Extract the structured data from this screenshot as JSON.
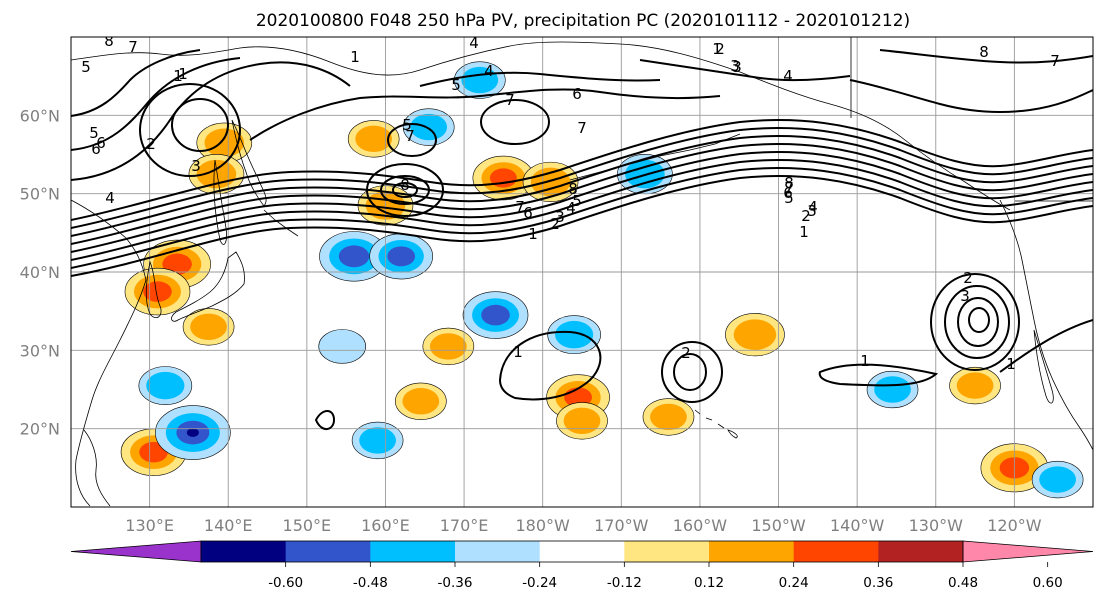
{
  "title": "2020100800 F048 250 hPa PV, precipitation PC (2020101112 - 2020101212)",
  "map": {
    "lat_labels": [
      "60°N",
      "50°N",
      "40°N",
      "30°N",
      "20°N"
    ],
    "lon_labels": [
      "130°E",
      "140°E",
      "150°E",
      "160°E",
      "170°E",
      "180°W",
      "170°W",
      "160°W",
      "150°W",
      "140°W",
      "130°W",
      "120°W"
    ],
    "grid": true
  },
  "colorbar": {
    "colors": [
      "#9933cc",
      "#000080",
      "#3355cc",
      "#00bfff",
      "#b0e0ff",
      "#ffffff",
      "#ffe680",
      "#ffa500",
      "#ff4500",
      "#b22222",
      "#ff88aa"
    ],
    "tick_labels": [
      "-0.60",
      "-0.48",
      "-0.36",
      "-0.24",
      "-0.12",
      "0.12",
      "0.24",
      "0.36",
      "0.48",
      "0.60"
    ]
  },
  "contour_labels": [
    "8",
    "7",
    "5",
    "6",
    "1",
    "2",
    "3",
    "4",
    "8",
    "7",
    "3",
    "4",
    "5",
    "7",
    "6",
    "7",
    "1",
    "2",
    "3",
    "4",
    "5",
    "6",
    "7",
    "8",
    "1",
    "2",
    "3",
    "4",
    "5",
    "6",
    "7",
    "8",
    "4",
    "3",
    "2",
    "1",
    "1",
    "2",
    "1",
    "1",
    "2",
    "3",
    "1",
    "8",
    "7",
    "1",
    "4",
    "5",
    "6",
    "5"
  ],
  "precip_blobs": [
    {
      "lon": 139.5,
      "lat": 56.5,
      "level": 0.3
    },
    {
      "lon": 138.5,
      "lat": 52.5,
      "level": 0.3
    },
    {
      "lon": 133.5,
      "lat": 41.0,
      "level": 0.42
    },
    {
      "lon": 131.0,
      "lat": 37.5,
      "level": 0.4
    },
    {
      "lon": 137.5,
      "lat": 33.0,
      "level": 0.26
    },
    {
      "lon": 130.5,
      "lat": 17.0,
      "level": 0.4
    },
    {
      "lon": 135.5,
      "lat": 19.5,
      "level": -0.5
    },
    {
      "lon": 132.0,
      "lat": 25.5,
      "level": -0.28
    },
    {
      "lon": 156.0,
      "lat": 42.0,
      "level": -0.44
    },
    {
      "lon": 162.0,
      "lat": 42.0,
      "level": -0.38
    },
    {
      "lon": 160.0,
      "lat": 48.5,
      "level": 0.3
    },
    {
      "lon": 175.0,
      "lat": 52.0,
      "level": 0.36
    },
    {
      "lon": 181.0,
      "lat": 51.5,
      "level": 0.3
    },
    {
      "lon": 174.0,
      "lat": 34.5,
      "level": -0.4
    },
    {
      "lon": 184.0,
      "lat": 32.0,
      "level": -0.28
    },
    {
      "lon": 184.5,
      "lat": 24.0,
      "level": 0.38
    },
    {
      "lon": 168.0,
      "lat": 30.5,
      "level": 0.26
    },
    {
      "lon": 164.5,
      "lat": 23.5,
      "level": 0.26
    },
    {
      "lon": 193.0,
      "lat": 52.5,
      "level": -0.3
    },
    {
      "lon": 165.5,
      "lat": 58.5,
      "level": -0.26
    },
    {
      "lon": 158.5,
      "lat": 57.0,
      "level": 0.26
    },
    {
      "lon": 207.0,
      "lat": 32.0,
      "level": 0.34
    },
    {
      "lon": 224.5,
      "lat": 25.0,
      "level": -0.26
    },
    {
      "lon": 235.0,
      "lat": 25.5,
      "level": 0.26
    },
    {
      "lon": 240.0,
      "lat": 15.0,
      "level": 0.42
    },
    {
      "lon": 245.5,
      "lat": 13.5,
      "level": -0.26
    },
    {
      "lon": 159.0,
      "lat": 18.5,
      "level": -0.26
    },
    {
      "lon": 154.5,
      "lat": 30.5,
      "level": -0.22
    },
    {
      "lon": 172.0,
      "lat": 64.5,
      "level": -0.26
    },
    {
      "lon": 185.0,
      "lat": 21.0,
      "level": 0.26
    },
    {
      "lon": 196.0,
      "lat": 21.5,
      "level": 0.26
    }
  ]
}
